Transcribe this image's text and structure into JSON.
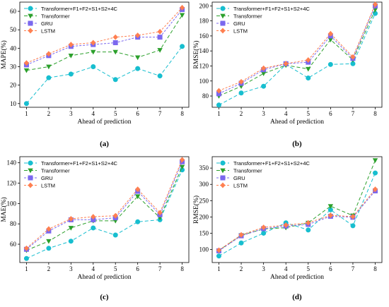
{
  "colors": {
    "Transformer+F1+F2+S1+S2+4C": "#17becf",
    "Transformer": "#2ca02c",
    "GRU": "#7b68ee",
    "LSTM": "#ff7f50"
  },
  "chart_data": [
    {
      "type": "line",
      "panel_label": "(a)",
      "xlabel": "Ahead of prediction",
      "ylabel": "MAPE(%)",
      "x": [
        1,
        2,
        3,
        4,
        5,
        6,
        7,
        8
      ],
      "xlim": [
        0.7,
        8.3
      ],
      "ylim": [
        8,
        65
      ],
      "yticks": [
        10,
        20,
        30,
        40,
        50,
        60
      ],
      "legend_position": "top-left",
      "series": [
        {
          "name": "Transformer+F1+F2+S1+S2+4C",
          "marker": "circle",
          "values": [
            10,
            24,
            26,
            30,
            23,
            29,
            25,
            41
          ]
        },
        {
          "name": "Transformer",
          "marker": "triangle-down",
          "values": [
            28,
            30,
            36,
            38,
            38,
            35,
            39,
            58
          ]
        },
        {
          "name": "GRU",
          "marker": "square",
          "values": [
            31,
            36,
            41,
            42,
            43,
            46,
            46,
            61
          ]
        },
        {
          "name": "LSTM",
          "marker": "diamond",
          "values": [
            32,
            37,
            42,
            43,
            46,
            47,
            49,
            62
          ]
        }
      ]
    },
    {
      "type": "line",
      "panel_label": "(b)",
      "xlabel": "Ahead of prediction",
      "ylabel": "RMSE(%)",
      "x": [
        1,
        2,
        3,
        4,
        5,
        6,
        7,
        8
      ],
      "xlim": [
        0.7,
        8.3
      ],
      "ylim": [
        65,
        205
      ],
      "yticks": [
        80,
        100,
        120,
        140,
        160,
        180,
        200
      ],
      "legend_position": "top-left",
      "series": [
        {
          "name": "Transformer+F1+F2+S1+S2+4C",
          "marker": "circle",
          "values": [
            68,
            84,
            93,
            122,
            104,
            122,
            123,
            190
          ]
        },
        {
          "name": "Transformer",
          "marker": "triangle-down",
          "values": [
            80,
            93,
            110,
            121,
            116,
            155,
            128,
            195
          ]
        },
        {
          "name": "GRU",
          "marker": "square",
          "values": [
            83,
            97,
            115,
            123,
            125,
            160,
            130,
            200
          ]
        },
        {
          "name": "LSTM",
          "marker": "diamond",
          "values": [
            87,
            99,
            117,
            123,
            128,
            163,
            132,
            202
          ]
        }
      ]
    },
    {
      "type": "line",
      "panel_label": "(c)",
      "xlabel": "Ahead of prediction",
      "ylabel": "MAE(%)",
      "x": [
        1,
        2,
        3,
        4,
        5,
        6,
        7,
        8
      ],
      "xlim": [
        0.7,
        8.3
      ],
      "ylim": [
        42,
        146
      ],
      "yticks": [
        60,
        80,
        100,
        120,
        140
      ],
      "legend_position": "top-left",
      "series": [
        {
          "name": "Transformer+F1+F2+S1+S2+4C",
          "marker": "circle",
          "values": [
            46,
            56,
            63,
            76,
            69,
            82,
            84,
            133
          ]
        },
        {
          "name": "Transformer",
          "marker": "triangle-down",
          "values": [
            54,
            63,
            76,
            83,
            83,
            107,
            86,
            136
          ]
        },
        {
          "name": "GRU",
          "marker": "square",
          "values": [
            55,
            73,
            84,
            84,
            86,
            112,
            89,
            141
          ]
        },
        {
          "name": "LSTM",
          "marker": "diamond",
          "values": [
            56,
            75,
            85,
            87,
            88,
            114,
            91,
            143
          ]
        }
      ]
    },
    {
      "type": "line",
      "panel_label": "(d)",
      "xlabel": "Ahead of prediction",
      "ylabel": "RMSE(%)",
      "x": [
        1,
        2,
        3,
        4,
        5,
        6,
        7,
        8
      ],
      "xlim": [
        0.7,
        8.3
      ],
      "ylim": [
        60,
        385
      ],
      "yticks": [
        100,
        150,
        200,
        250,
        300,
        350
      ],
      "legend_position": "top-left",
      "series": [
        {
          "name": "Transformer+F1+F2+S1+S2+4C",
          "marker": "circle",
          "values": [
            80,
            120,
            150,
            182,
            160,
            222,
            173,
            335
          ]
        },
        {
          "name": "Transformer",
          "marker": "triangle-down",
          "values": [
            97,
            144,
            163,
            167,
            182,
            233,
            204,
            374
          ]
        },
        {
          "name": "GRU",
          "marker": "square",
          "values": [
            96,
            142,
            164,
            172,
            177,
            202,
            199,
            280
          ]
        },
        {
          "name": "LSTM",
          "marker": "diamond",
          "values": [
            98,
            145,
            168,
            175,
            182,
            205,
            201,
            285
          ]
        }
      ]
    }
  ]
}
